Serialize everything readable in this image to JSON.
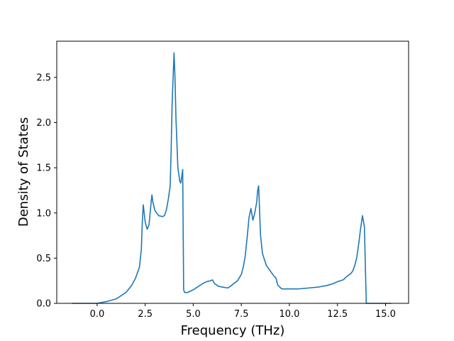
{
  "chart_data": {
    "type": "line",
    "xlabel": "Frequency (THz)",
    "ylabel": "Density of States",
    "xlim": [
      -2.1,
      16.2
    ],
    "ylim": [
      0.0,
      2.9
    ],
    "xticks": [
      0.0,
      2.5,
      5.0,
      7.5,
      10.0,
      12.5,
      15.0
    ],
    "xtick_labels": [
      "0.0",
      "2.5",
      "5.0",
      "7.5",
      "10.0",
      "12.5",
      "15.0"
    ],
    "yticks": [
      0.0,
      0.5,
      1.0,
      1.5,
      2.0,
      2.5
    ],
    "ytick_labels": [
      "0.0",
      "0.5",
      "1.0",
      "1.5",
      "2.0",
      "2.5"
    ],
    "grid": false,
    "series": [
      {
        "color": "#1f77b4",
        "x": [
          -1.3,
          -0.5,
          0.0,
          0.5,
          1.0,
          1.5,
          1.8,
          2.0,
          2.2,
          2.3,
          2.35,
          2.4,
          2.5,
          2.6,
          2.7,
          2.8,
          2.85,
          2.9,
          3.0,
          3.2,
          3.4,
          3.5,
          3.6,
          3.7,
          3.8,
          3.85,
          3.9,
          4.0,
          4.05,
          4.1,
          4.2,
          4.3,
          4.35,
          4.4,
          4.45,
          4.5,
          4.55,
          4.6,
          4.7,
          5.0,
          5.5,
          5.7,
          5.9,
          6.0,
          6.1,
          6.3,
          6.5,
          6.8,
          7.0,
          7.3,
          7.5,
          7.6,
          7.7,
          7.8,
          7.9,
          8.0,
          8.1,
          8.2,
          8.3,
          8.35,
          8.4,
          8.5,
          8.6,
          8.8,
          9.0,
          9.2,
          9.3,
          9.4,
          9.6,
          10.0,
          10.5,
          11.0,
          11.5,
          12.0,
          12.3,
          12.5,
          12.8,
          13.0,
          13.2,
          13.3,
          13.4,
          13.5,
          13.6,
          13.7,
          13.8,
          13.9,
          14.0,
          14.1,
          15.0,
          15.3
        ],
        "y": [
          0.0,
          0.0,
          0.0,
          0.02,
          0.05,
          0.12,
          0.2,
          0.28,
          0.4,
          0.6,
          0.9,
          1.09,
          0.9,
          0.82,
          0.87,
          1.1,
          1.2,
          1.12,
          1.03,
          0.97,
          0.96,
          0.97,
          1.03,
          1.15,
          1.3,
          1.7,
          2.2,
          2.77,
          2.5,
          2.05,
          1.5,
          1.35,
          1.33,
          1.4,
          1.48,
          0.15,
          0.12,
          0.12,
          0.12,
          0.15,
          0.22,
          0.24,
          0.25,
          0.26,
          0.22,
          0.19,
          0.18,
          0.17,
          0.2,
          0.25,
          0.32,
          0.4,
          0.52,
          0.72,
          0.95,
          1.05,
          0.92,
          1.0,
          1.12,
          1.25,
          1.3,
          0.75,
          0.55,
          0.42,
          0.36,
          0.3,
          0.28,
          0.2,
          0.16,
          0.16,
          0.16,
          0.17,
          0.18,
          0.2,
          0.22,
          0.24,
          0.26,
          0.3,
          0.33,
          0.36,
          0.42,
          0.5,
          0.65,
          0.82,
          0.97,
          0.85,
          0.0,
          0.0,
          0.0,
          0.0
        ]
      }
    ]
  }
}
